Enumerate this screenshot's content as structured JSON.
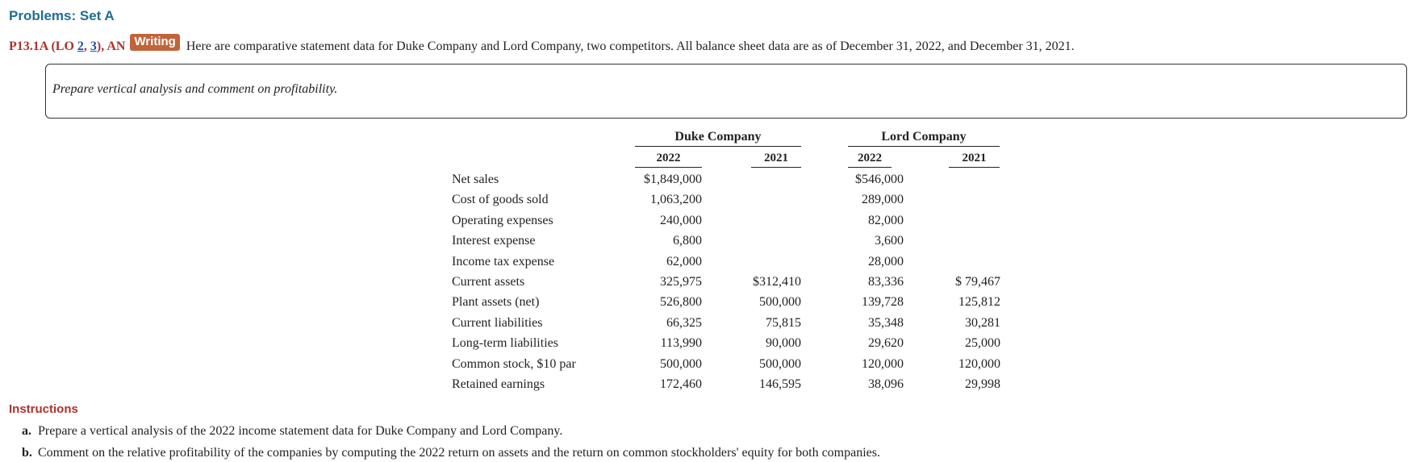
{
  "header": {
    "title": "Problems: Set A"
  },
  "problem": {
    "label_parts": [
      "P13.1A (LO ",
      "2",
      ", ",
      "3",
      "), AN"
    ],
    "badge": "Writing",
    "intro": "Here are comparative statement data for Duke Company and Lord Company, two competitors. All balance sheet data are as of December 31, 2022, and December 31, 2021."
  },
  "task": "Prepare vertical analysis and comment on profitability.",
  "table": {
    "companies": [
      {
        "name": "Duke Company",
        "years": [
          "2022",
          "2021"
        ]
      },
      {
        "name": "Lord Company",
        "years": [
          "2022",
          "2021"
        ]
      }
    ],
    "rows": [
      {
        "label": "Net sales",
        "values": [
          "$1,849,000",
          null,
          "$546,000",
          null
        ]
      },
      {
        "label": "Cost of goods sold",
        "values": [
          "1,063,200",
          null,
          "289,000",
          null
        ]
      },
      {
        "label": "Operating expenses",
        "values": [
          "240,000",
          null,
          "82,000",
          null
        ]
      },
      {
        "label": "Interest expense",
        "values": [
          "6,800",
          null,
          "3,600",
          null
        ]
      },
      {
        "label": "Income tax expense",
        "values": [
          "62,000",
          null,
          "28,000",
          null
        ]
      },
      {
        "label": "Current assets",
        "values": [
          "325,975",
          "$312,410",
          "83,336",
          "$ 79,467"
        ]
      },
      {
        "label": "Plant assets (net)",
        "values": [
          "526,800",
          "500,000",
          "139,728",
          "125,812"
        ]
      },
      {
        "label": "Current liabilities",
        "values": [
          "66,325",
          "75,815",
          "35,348",
          "30,281"
        ]
      },
      {
        "label": "Long-term liabilities",
        "values": [
          "113,990",
          "90,000",
          "29,620",
          "25,000"
        ]
      },
      {
        "label": "Common stock, $10 par",
        "values": [
          "500,000",
          "500,000",
          "120,000",
          "120,000"
        ]
      },
      {
        "label": "Retained earnings",
        "values": [
          "172,460",
          "146,595",
          "38,096",
          "29,998"
        ]
      }
    ]
  },
  "instructions": {
    "title": "Instructions",
    "items": [
      {
        "marker": "a.",
        "text": "Prepare a vertical analysis of the 2022 income statement data for Duke Company and Lord Company."
      },
      {
        "marker": "b.",
        "text": "Comment on the relative profitability of the companies by computing the 2022 return on assets and the return on common stockholders' equity for both companies."
      }
    ]
  }
}
